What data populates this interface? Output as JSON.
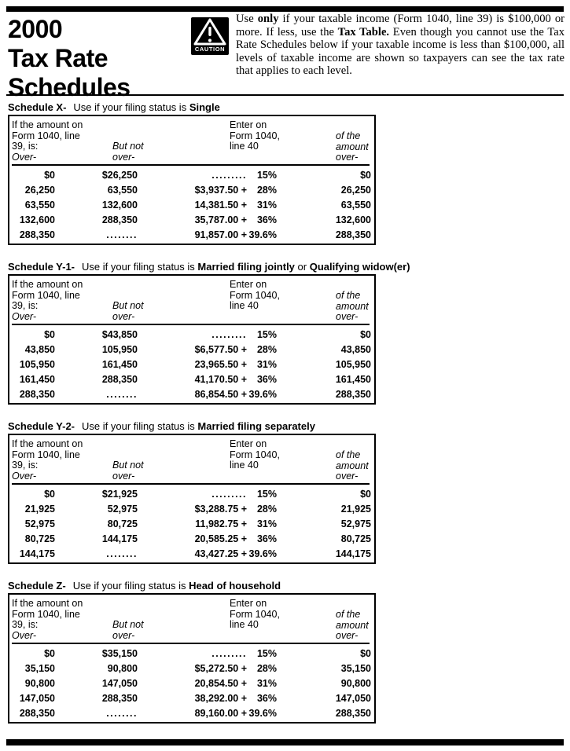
{
  "header": {
    "title_lines": [
      "2000",
      "Tax Rate",
      "Schedules"
    ],
    "caution_label": "CAUTION",
    "intro_parts": [
      {
        "text": "Use ",
        "bold": false
      },
      {
        "text": "only",
        "bold": true
      },
      {
        "text": " if your taxable income (Form 1040, line 39) is $100,000 or more. If less, use the ",
        "bold": false
      },
      {
        "text": "Tax Table.",
        "bold": true
      },
      {
        "text": " Even though you cannot use the Tax Rate Schedules below if your taxable income is less than $100,000, all levels of taxable income are shown so taxpayers can see the tax rate that applies to each level.",
        "bold": false
      }
    ]
  },
  "table_header": {
    "amount_label_lines": [
      "If the amount on",
      "Form 1040, line",
      "39, is:"
    ],
    "over_label": "Over-",
    "but_not_over_lines": [
      "But not",
      "over-"
    ],
    "enter_label_lines": [
      "Enter on",
      "Form 1040,",
      "line 40"
    ],
    "of_amount_lines": [
      "of the",
      "amount",
      "over-"
    ]
  },
  "schedules": [
    {
      "label": "Schedule X-",
      "lead": "Use if your filing status is ",
      "status_parts": [
        {
          "text": "Single",
          "bold": true
        }
      ],
      "rows": [
        {
          "over": "$0",
          "but_not_over": "$26,250",
          "base": ".........",
          "rate": "15%",
          "of_amount_over": "$0"
        },
        {
          "over": "26,250",
          "but_not_over": "63,550",
          "base": "$3,937.50 +",
          "rate": "28%",
          "of_amount_over": "26,250"
        },
        {
          "over": "63,550",
          "but_not_over": "132,600",
          "base": "14,381.50 +",
          "rate": "31%",
          "of_amount_over": "63,550"
        },
        {
          "over": "132,600",
          "but_not_over": "288,350",
          "base": "35,787.00 +",
          "rate": "36%",
          "of_amount_over": "132,600"
        },
        {
          "over": "288,350",
          "but_not_over": "........",
          "base": "91,857.00 +",
          "rate": "39.6%",
          "of_amount_over": "288,350"
        }
      ]
    },
    {
      "label": "Schedule Y-1-",
      "lead": "Use if your filing status is ",
      "status_parts": [
        {
          "text": "Married filing jointly",
          "bold": true
        },
        {
          "text": " or ",
          "bold": false
        },
        {
          "text": "Qualifying widow(er)",
          "bold": true
        }
      ],
      "rows": [
        {
          "over": "$0",
          "but_not_over": "$43,850",
          "base": ".........",
          "rate": "15%",
          "of_amount_over": "$0"
        },
        {
          "over": "43,850",
          "but_not_over": "105,950",
          "base": "$6,577.50 +",
          "rate": "28%",
          "of_amount_over": "43,850"
        },
        {
          "over": "105,950",
          "but_not_over": "161,450",
          "base": "23,965.50 +",
          "rate": "31%",
          "of_amount_over": "105,950"
        },
        {
          "over": "161,450",
          "but_not_over": "288,350",
          "base": "41,170.50 +",
          "rate": "36%",
          "of_amount_over": "161,450"
        },
        {
          "over": "288,350",
          "but_not_over": "........",
          "base": "86,854.50 +",
          "rate": "39.6%",
          "of_amount_over": "288,350"
        }
      ]
    },
    {
      "label": "Schedule Y-2-",
      "lead": "Use if your filing status is ",
      "status_parts": [
        {
          "text": "Married filing separately",
          "bold": true
        }
      ],
      "rows": [
        {
          "over": "$0",
          "but_not_over": "$21,925",
          "base": ".........",
          "rate": "15%",
          "of_amount_over": "$0"
        },
        {
          "over": "21,925",
          "but_not_over": "52,975",
          "base": "$3,288.75 +",
          "rate": "28%",
          "of_amount_over": "21,925"
        },
        {
          "over": "52,975",
          "but_not_over": "80,725",
          "base": "11,982.75 +",
          "rate": "31%",
          "of_amount_over": "52,975"
        },
        {
          "over": "80,725",
          "but_not_over": "144,175",
          "base": "20,585.25 +",
          "rate": "36%",
          "of_amount_over": "80,725"
        },
        {
          "over": "144,175",
          "but_not_over": "........",
          "base": "43,427.25 +",
          "rate": "39.6%",
          "of_amount_over": "144,175"
        }
      ]
    },
    {
      "label": "Schedule Z-",
      "lead": "Use if your filing status is ",
      "status_parts": [
        {
          "text": "Head of household",
          "bold": true
        }
      ],
      "rows": [
        {
          "over": "$0",
          "but_not_over": "$35,150",
          "base": ".........",
          "rate": "15%",
          "of_amount_over": "$0"
        },
        {
          "over": "35,150",
          "but_not_over": "90,800",
          "base": "$5,272.50 +",
          "rate": "28%",
          "of_amount_over": "35,150"
        },
        {
          "over": "90,800",
          "but_not_over": "147,050",
          "base": "20,854.50 +",
          "rate": "31%",
          "of_amount_over": "90,800"
        },
        {
          "over": "147,050",
          "but_not_over": "288,350",
          "base": "38,292.00 +",
          "rate": "36%",
          "of_amount_over": "147,050"
        },
        {
          "over": "288,350",
          "but_not_over": "........",
          "base": "89,160.00 +",
          "rate": "39.6%",
          "of_amount_over": "288,350"
        }
      ]
    }
  ]
}
